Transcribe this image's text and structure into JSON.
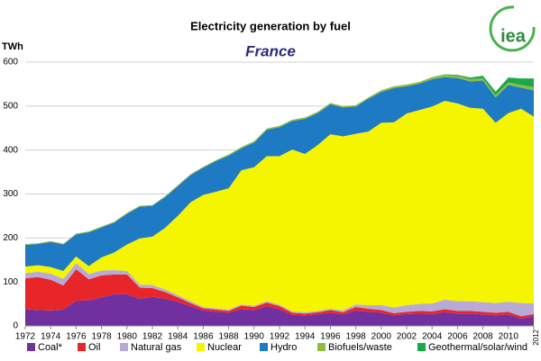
{
  "logo": "iea",
  "chart_data": {
    "type": "stacked_area",
    "title": "Electricity generation by fuel",
    "subtitle": "France",
    "y_label": "TWh",
    "x": [
      1972,
      1973,
      1974,
      1975,
      1976,
      1977,
      1978,
      1979,
      1980,
      1981,
      1982,
      1983,
      1984,
      1985,
      1986,
      1987,
      1988,
      1989,
      1990,
      1991,
      1992,
      1993,
      1994,
      1995,
      1996,
      1997,
      1998,
      1999,
      2000,
      2001,
      2002,
      2003,
      2004,
      2005,
      2006,
      2007,
      2008,
      2009,
      2010,
      2011,
      2012
    ],
    "xlim": [
      1972,
      2012
    ],
    "xticks": [
      1972,
      1974,
      1976,
      1978,
      1980,
      1982,
      1984,
      1986,
      1988,
      1990,
      1992,
      1994,
      1996,
      1998,
      2000,
      2002,
      2004,
      2006,
      2008,
      2010,
      2012
    ],
    "ylim": [
      0,
      600
    ],
    "yticks": [
      0,
      100,
      200,
      300,
      400,
      500,
      600
    ],
    "grid": true,
    "series": [
      {
        "name": "Coal*",
        "color": "#7030a0",
        "values": [
          38,
          36,
          35,
          37,
          57,
          58,
          65,
          72,
          72,
          62,
          66,
          62,
          55,
          45,
          35,
          32,
          30,
          38,
          36,
          45,
          38,
          25,
          24,
          26,
          30,
          26,
          35,
          32,
          30,
          24,
          27,
          28,
          27,
          31,
          28,
          28,
          26,
          24,
          26,
          17,
          22
        ]
      },
      {
        "name": "Oil",
        "color": "#e8262a",
        "values": [
          70,
          75,
          70,
          55,
          72,
          48,
          50,
          45,
          45,
          25,
          20,
          15,
          10,
          7,
          5,
          5,
          4,
          8,
          7,
          8,
          7,
          5,
          4,
          5,
          6,
          5,
          8,
          7,
          6,
          5,
          5,
          6,
          6,
          7,
          6,
          6,
          6,
          6,
          6,
          5,
          5
        ]
      },
      {
        "name": "Natural gas",
        "color": "#b7a9d8",
        "values": [
          12,
          12,
          14,
          15,
          14,
          12,
          11,
          10,
          8,
          7,
          7,
          6,
          5,
          4,
          3,
          3,
          3,
          3,
          3,
          3,
          3,
          3,
          3,
          3,
          3,
          4,
          6,
          8,
          11,
          13,
          15,
          16,
          18,
          22,
          22,
          22,
          22,
          22,
          23,
          30,
          24
        ]
      },
      {
        "name": "Nuclear",
        "color": "#f5f500",
        "values": [
          15,
          15,
          15,
          18,
          15,
          18,
          30,
          40,
          60,
          105,
          110,
          140,
          180,
          225,
          255,
          265,
          276,
          305,
          315,
          330,
          338,
          368,
          360,
          377,
          397,
          396,
          388,
          395,
          415,
          421,
          436,
          441,
          448,
          452,
          450,
          440,
          440,
          410,
          429,
          442,
          425
        ]
      },
      {
        "name": "Hydro",
        "color": "#1f7ac4",
        "values": [
          49,
          48,
          57,
          60,
          50,
          77,
          68,
          68,
          70,
          72,
          70,
          70,
          68,
          62,
          62,
          70,
          74,
          50,
          56,
          60,
          66,
          65,
          80,
          73,
          68,
          66,
          62,
          75,
          70,
          78,
          62,
          60,
          62,
          54,
          58,
          60,
          64,
          58,
          64,
          48,
          60
        ]
      },
      {
        "name": "Biofuels/waste",
        "color": "#8fbc3c",
        "values": [
          2,
          2,
          2,
          2,
          2,
          2,
          2,
          2,
          2,
          2,
          2,
          2,
          2,
          2,
          2,
          2,
          3,
          3,
          3,
          3,
          3,
          3,
          3,
          3,
          3,
          3,
          3,
          3,
          4,
          4,
          4,
          4,
          5,
          5,
          5,
          5,
          5,
          5,
          6,
          6,
          7
        ]
      },
      {
        "name": "Geothermal/solar/wind",
        "color": "#1aa84a",
        "values": [
          0,
          0,
          0,
          0,
          0,
          0,
          0,
          0,
          0,
          0,
          0,
          0,
          0,
          0,
          0,
          0,
          0,
          0,
          0,
          0,
          0,
          0,
          0,
          0,
          0,
          0,
          0,
          0,
          0,
          0,
          0,
          0,
          0,
          1,
          2,
          4,
          6,
          8,
          11,
          15,
          20
        ]
      }
    ]
  }
}
